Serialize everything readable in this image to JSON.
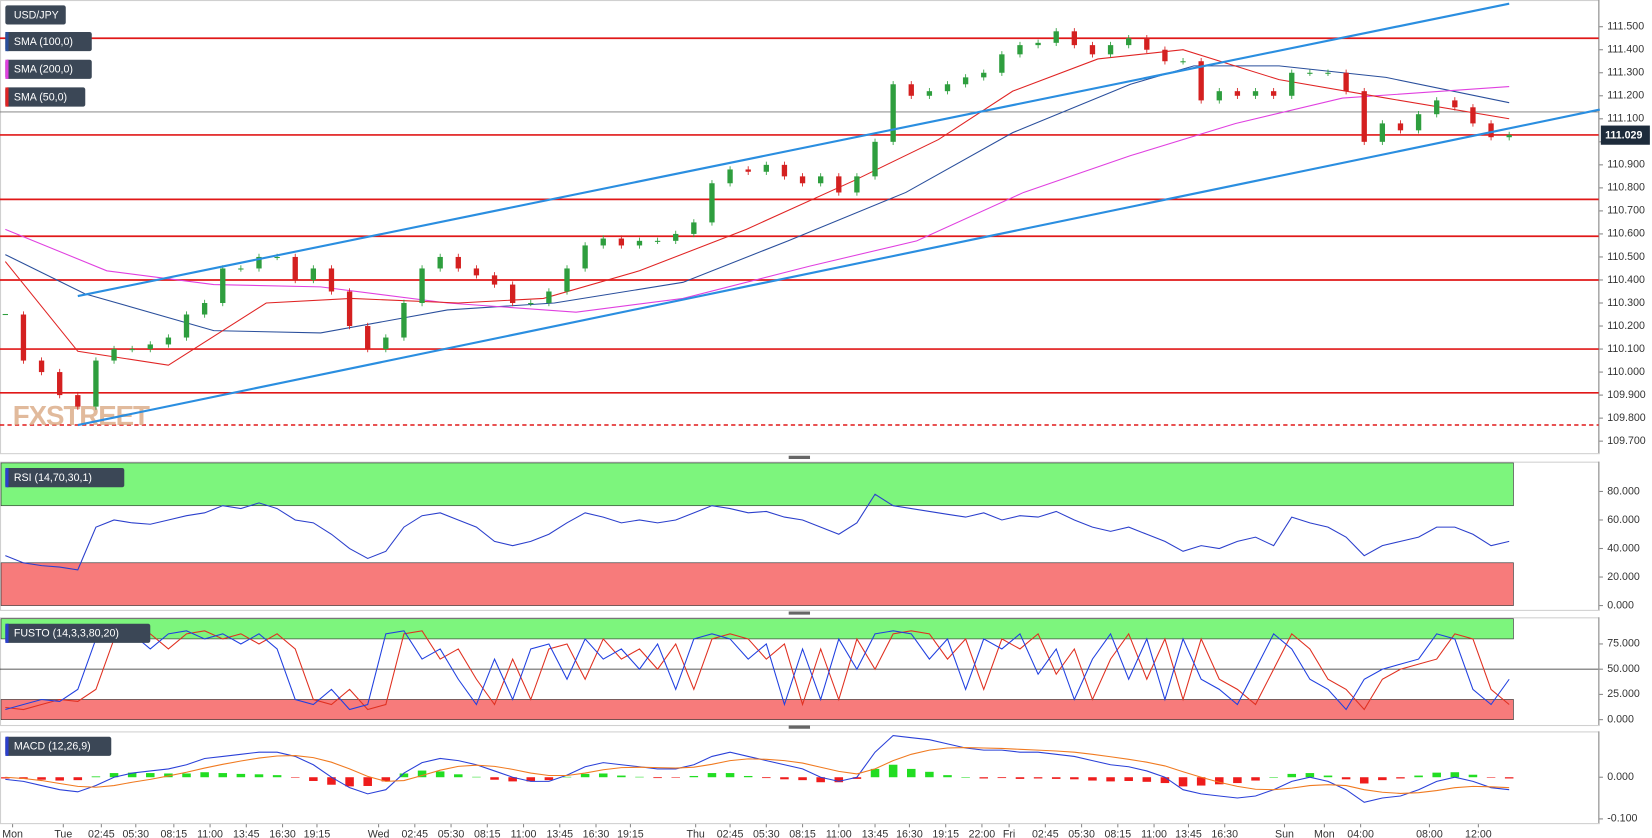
{
  "chart_data": [
    {
      "type": "candlestick",
      "title": "USD/JPY",
      "xlim": [
        0,
        88
      ],
      "xticks": [
        {
          "value": 0.4,
          "label": "Mon"
        },
        {
          "value": 3.2,
          "label": "Tue"
        },
        {
          "value": 5.3,
          "label": "02:45"
        },
        {
          "value": 7.2,
          "label": "05:30"
        },
        {
          "value": 9.3,
          "label": "08:15"
        },
        {
          "value": 11.3,
          "label": "11:00"
        },
        {
          "value": 13.3,
          "label": "13:45"
        },
        {
          "value": 15.3,
          "label": "16:30"
        },
        {
          "value": 17.2,
          "label": "19:15"
        },
        {
          "value": 20.6,
          "label": "Wed"
        },
        {
          "value": 22.6,
          "label": "02:45"
        },
        {
          "value": 24.6,
          "label": "05:30"
        },
        {
          "value": 26.6,
          "label": "08:15"
        },
        {
          "value": 28.6,
          "label": "11:00"
        },
        {
          "value": 30.6,
          "label": "13:45"
        },
        {
          "value": 32.6,
          "label": "16:30"
        },
        {
          "value": 34.5,
          "label": "19:15"
        },
        {
          "value": 38.1,
          "label": "Thu"
        },
        {
          "value": 40,
          "label": "02:45"
        },
        {
          "value": 42,
          "label": "05:30"
        },
        {
          "value": 44,
          "label": "08:15"
        },
        {
          "value": 46,
          "label": "11:00"
        },
        {
          "value": 48,
          "label": "13:45"
        },
        {
          "value": 49.9,
          "label": "16:30"
        },
        {
          "value": 51.9,
          "label": "19:15"
        },
        {
          "value": 53.9,
          "label": "22:00"
        },
        {
          "value": 55.4,
          "label": "Fri"
        },
        {
          "value": 57.4,
          "label": "02:45"
        },
        {
          "value": 59.4,
          "label": "05:30"
        },
        {
          "value": 61.4,
          "label": "08:15"
        },
        {
          "value": 63.4,
          "label": "11:00"
        },
        {
          "value": 65.3,
          "label": "13:45"
        },
        {
          "value": 67.3,
          "label": "16:30"
        },
        {
          "value": 70.6,
          "label": "Sun"
        },
        {
          "value": 72.8,
          "label": "Mon"
        },
        {
          "value": 74.8,
          "label": "04:00"
        },
        {
          "value": 78.6,
          "label": "08:00"
        },
        {
          "value": 81.3,
          "label": "12:00"
        }
      ],
      "ylim": [
        109.648,
        111.616
      ],
      "yticks": [
        {
          "value": 109.7,
          "label": "109.700"
        },
        {
          "value": 109.8,
          "label": "109.800"
        },
        {
          "value": 109.9,
          "label": "109.900"
        },
        {
          "value": 110,
          "label": "110.000"
        },
        {
          "value": 110.1,
          "label": "110.100"
        },
        {
          "value": 110.2,
          "label": "110.200"
        },
        {
          "value": 110.3,
          "label": "110.300"
        },
        {
          "value": 110.4,
          "label": "110.400"
        },
        {
          "value": 110.5,
          "label": "110.500"
        },
        {
          "value": 110.6,
          "label": "110.600"
        },
        {
          "value": 110.7,
          "label": "110.700"
        },
        {
          "value": 110.8,
          "label": "110.800"
        },
        {
          "value": 110.9,
          "label": "110.900"
        },
        {
          "value": 111,
          "label": "111.000"
        },
        {
          "value": 111.1,
          "label": "111.100"
        },
        {
          "value": 111.2,
          "label": "111.200"
        },
        {
          "value": 111.3,
          "label": "111.300"
        },
        {
          "value": 111.4,
          "label": "111.400"
        },
        {
          "value": 111.5,
          "label": "111.500"
        }
      ],
      "closes": [
        110.25,
        110.05,
        110.0,
        109.9,
        109.85,
        110.05,
        110.1,
        110.1,
        110.12,
        110.15,
        110.25,
        110.3,
        110.45,
        110.45,
        110.5,
        110.5,
        110.4,
        110.45,
        110.35,
        110.2,
        110.1,
        110.15,
        110.3,
        110.45,
        110.5,
        110.45,
        110.42,
        110.38,
        110.3,
        110.3,
        110.35,
        110.45,
        110.55,
        110.58,
        110.55,
        110.57,
        110.57,
        110.6,
        110.65,
        110.82,
        110.88,
        110.87,
        110.9,
        110.85,
        110.82,
        110.85,
        110.78,
        110.85,
        111.0,
        111.25,
        111.2,
        111.22,
        111.25,
        111.28,
        111.3,
        111.38,
        111.42,
        111.43,
        111.48,
        111.42,
        111.38,
        111.42,
        111.45,
        111.4,
        111.35,
        111.35,
        111.18,
        111.22,
        111.2,
        111.22,
        111.2,
        111.3,
        111.3,
        111.3,
        111.22,
        111.0,
        111.08,
        111.05,
        111.12,
        111.18,
        111.15,
        111.08,
        111.02,
        111.03
      ],
      "up_color": "#2e9e3e",
      "down_color": "#d42020",
      "series": [
        {
          "name": "SMA (100,0)",
          "color": "#2a4f9c",
          "x": [
            0,
            4.4,
            11.5,
            17.4,
            24.4,
            30.3,
            37.4,
            43.2,
            49.7,
            55.6,
            62.1,
            65.6,
            70.3,
            76.2,
            83
          ],
          "values": [
            110.51,
            110.34,
            110.18,
            110.17,
            110.27,
            110.3,
            110.39,
            110.57,
            110.78,
            111.04,
            111.25,
            111.33,
            111.33,
            111.28,
            111.17
          ]
        },
        {
          "name": "SMA (200,0)",
          "color": "#e040e0",
          "x": [
            0,
            5.6,
            11.5,
            17.4,
            24.4,
            31.5,
            37.4,
            44.4,
            50.3,
            56.2,
            62.1,
            67.9,
            73.8,
            83
          ],
          "values": [
            110.62,
            110.44,
            110.38,
            110.37,
            110.3,
            110.26,
            110.32,
            110.46,
            110.57,
            110.78,
            110.94,
            111.08,
            111.19,
            111.24
          ]
        },
        {
          "name": "SMA (50,0)",
          "color": "#e02424",
          "x": [
            0,
            4,
            9,
            14.4,
            19.1,
            25,
            29.7,
            35,
            40.9,
            46.8,
            51.5,
            55.6,
            60.3,
            65,
            70.3,
            76.2,
            83
          ],
          "values": [
            110.48,
            110.09,
            110.03,
            110.3,
            110.32,
            110.3,
            110.32,
            110.44,
            110.62,
            110.83,
            111.01,
            111.22,
            111.36,
            111.4,
            111.27,
            111.19,
            111.1
          ]
        }
      ],
      "levels": [
        111.45,
        111.03,
        110.75,
        110.59,
        110.4,
        110.1,
        109.91
      ],
      "level_color": "#e01818",
      "dashed_level": 109.77,
      "reference_line": 111.13,
      "trendlines": [
        {
          "color": "#2a8ee0",
          "x": [
            4,
            83
          ],
          "values": [
            110.33,
            111.6
          ]
        },
        {
          "color": "#2a8ee0",
          "x": [
            4,
            88
          ],
          "values": [
            109.77,
            111.14
          ]
        }
      ],
      "last_price": 111.029,
      "watermark": "FXSTREET"
    },
    {
      "type": "line",
      "title": "RSI (14,70,30,1)",
      "ylim": [
        -3,
        100.9
      ],
      "yticks": [
        {
          "value": 0,
          "label": "0.000"
        },
        {
          "value": 20,
          "label": "20.000"
        },
        {
          "value": 40,
          "label": "40.000"
        },
        {
          "value": 60,
          "label": "60.000"
        },
        {
          "value": 80,
          "label": "80.000"
        }
      ],
      "bands": [
        {
          "range": [
            70,
            100
          ],
          "color": "#7df57d"
        },
        {
          "range": [
            0,
            30
          ],
          "color": "#f77b7b"
        }
      ],
      "series": [
        {
          "color": "#2b3fcc",
          "values": [
            35,
            30,
            28,
            27,
            25,
            55,
            60,
            58,
            57,
            60,
            63,
            65,
            70,
            68,
            72,
            68,
            60,
            58,
            50,
            40,
            33,
            38,
            55,
            63,
            65,
            60,
            55,
            45,
            42,
            45,
            50,
            58,
            65,
            62,
            58,
            60,
            58,
            60,
            65,
            70,
            68,
            65,
            66,
            62,
            60,
            55,
            50,
            58,
            78,
            70,
            68,
            66,
            64,
            62,
            65,
            60,
            63,
            62,
            66,
            60,
            55,
            52,
            55,
            50,
            45,
            38,
            42,
            40,
            45,
            48,
            42,
            62,
            58,
            55,
            48,
            35,
            42,
            45,
            48,
            55,
            55,
            50,
            42,
            45
          ]
        }
      ]
    },
    {
      "type": "line",
      "title": "FUSTO (14,3,3,80,20)",
      "ylim": [
        -5.3,
        101.4
      ],
      "yticks": [
        {
          "value": 0,
          "label": "0.000"
        },
        {
          "value": 25,
          "label": "25.000"
        },
        {
          "value": 50,
          "label": "50.000"
        },
        {
          "value": 75,
          "label": "75.000"
        }
      ],
      "bands": [
        {
          "range": [
            80,
            100
          ],
          "color": "#7df57d"
        },
        {
          "range": [
            0,
            20
          ],
          "color": "#f77b7b"
        }
      ],
      "midline": 50,
      "series": [
        {
          "color": "#e03020",
          "values": [
            12,
            10,
            15,
            20,
            18,
            30,
            80,
            90,
            85,
            70,
            85,
            88,
            80,
            85,
            75,
            85,
            70,
            20,
            15,
            30,
            10,
            15,
            85,
            88,
            60,
            70,
            40,
            15,
            60,
            20,
            70,
            75,
            40,
            80,
            60,
            70,
            50,
            75,
            30,
            80,
            85,
            80,
            60,
            75,
            15,
            70,
            20,
            80,
            50,
            85,
            88,
            85,
            60,
            80,
            30,
            80,
            70,
            85,
            45,
            70,
            20,
            60,
            85,
            40,
            80,
            20,
            80,
            40,
            30,
            15,
            50,
            85,
            70,
            40,
            30,
            10,
            40,
            50,
            55,
            60,
            85,
            80,
            30,
            15
          ]
        },
        {
          "color": "#2040e0",
          "values": [
            10,
            15,
            20,
            18,
            30,
            80,
            90,
            85,
            70,
            85,
            88,
            80,
            85,
            75,
            85,
            70,
            20,
            15,
            30,
            10,
            15,
            85,
            88,
            60,
            70,
            40,
            15,
            60,
            20,
            70,
            75,
            40,
            80,
            60,
            70,
            50,
            75,
            30,
            80,
            85,
            80,
            60,
            75,
            15,
            70,
            20,
            80,
            50,
            85,
            88,
            85,
            60,
            80,
            30,
            80,
            70,
            85,
            45,
            70,
            20,
            60,
            85,
            40,
            80,
            20,
            80,
            40,
            30,
            15,
            50,
            85,
            70,
            40,
            30,
            10,
            40,
            50,
            55,
            60,
            85,
            80,
            30,
            15,
            40
          ]
        }
      ]
    },
    {
      "type": "macd",
      "title": "MACD (12,26,9)",
      "ylim": [
        -0.11,
        0.11
      ],
      "yticks": [
        {
          "value": -0.1,
          "label": "-0.100"
        },
        {
          "value": 0,
          "label": "0.000"
        }
      ],
      "histogram": {
        "up_color": "#22dd22",
        "down_color": "#ee1c1c",
        "values": [
          -0.003,
          -0.004,
          -0.006,
          -0.008,
          -0.007,
          0.002,
          0.01,
          0.011,
          0.01,
          0.009,
          0.009,
          0.012,
          0.01,
          0.008,
          0.007,
          0.005,
          -0.001,
          -0.009,
          -0.018,
          -0.022,
          -0.021,
          -0.01,
          0.009,
          0.016,
          0.014,
          0.007,
          0.001,
          -0.006,
          -0.01,
          -0.01,
          -0.007,
          0.001,
          0.008,
          0.009,
          0.004,
          0.001,
          -0.002,
          -0.001,
          0.003,
          0.01,
          0.01,
          0.003,
          -0.002,
          -0.005,
          -0.007,
          -0.012,
          -0.012,
          -0.004,
          0.02,
          0.03,
          0.02,
          0.013,
          0.005,
          0.0,
          -0.003,
          -0.002,
          -0.004,
          -0.003,
          -0.004,
          -0.005,
          -0.008,
          -0.01,
          -0.009,
          -0.011,
          -0.014,
          -0.022,
          -0.02,
          -0.017,
          -0.014,
          -0.008,
          0.0,
          0.008,
          0.01,
          0.004,
          -0.005,
          -0.015,
          -0.007,
          -0.003,
          0.004,
          0.011,
          0.012,
          0.006,
          -0.001,
          -0.003
        ]
      },
      "series": [
        {
          "color": "#2a40d8",
          "values": [
            -0.005,
            -0.01,
            -0.02,
            -0.03,
            -0.035,
            -0.02,
            0.0,
            0.01,
            0.015,
            0.02,
            0.03,
            0.045,
            0.05,
            0.055,
            0.06,
            0.06,
            0.05,
            0.03,
            0.0,
            -0.025,
            -0.04,
            -0.03,
            0.01,
            0.035,
            0.045,
            0.04,
            0.03,
            0.015,
            0.0,
            -0.01,
            -0.01,
            0.005,
            0.025,
            0.035,
            0.03,
            0.025,
            0.02,
            0.02,
            0.03,
            0.05,
            0.06,
            0.05,
            0.04,
            0.03,
            0.02,
            0.0,
            -0.01,
            0.0,
            0.06,
            0.1,
            0.095,
            0.09,
            0.08,
            0.07,
            0.065,
            0.065,
            0.06,
            0.06,
            0.055,
            0.05,
            0.04,
            0.03,
            0.025,
            0.015,
            0.0,
            -0.03,
            -0.04,
            -0.045,
            -0.05,
            -0.045,
            -0.03,
            -0.01,
            0.0,
            -0.01,
            -0.03,
            -0.06,
            -0.05,
            -0.045,
            -0.03,
            -0.01,
            0.0,
            -0.01,
            -0.025,
            -0.03
          ]
        },
        {
          "color": "#f07a20",
          "values": [
            0.0,
            -0.003,
            -0.008,
            -0.015,
            -0.022,
            -0.024,
            -0.02,
            -0.012,
            -0.005,
            0.003,
            0.012,
            0.022,
            0.031,
            0.039,
            0.046,
            0.051,
            0.052,
            0.047,
            0.036,
            0.02,
            0.002,
            -0.01,
            -0.008,
            0.004,
            0.017,
            0.026,
            0.029,
            0.026,
            0.019,
            0.01,
            0.004,
            0.004,
            0.01,
            0.018,
            0.023,
            0.024,
            0.023,
            0.022,
            0.024,
            0.031,
            0.04,
            0.044,
            0.043,
            0.04,
            0.034,
            0.024,
            0.014,
            0.008,
            0.02,
            0.04,
            0.055,
            0.065,
            0.07,
            0.071,
            0.07,
            0.069,
            0.067,
            0.065,
            0.063,
            0.06,
            0.055,
            0.049,
            0.043,
            0.036,
            0.027,
            0.013,
            0.0,
            -0.012,
            -0.022,
            -0.029,
            -0.03,
            -0.026,
            -0.02,
            -0.018,
            -0.02,
            -0.03,
            -0.036,
            -0.039,
            -0.037,
            -0.032,
            -0.025,
            -0.022,
            -0.023,
            -0.025
          ]
        }
      ]
    }
  ]
}
